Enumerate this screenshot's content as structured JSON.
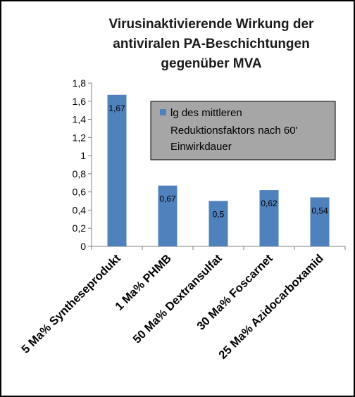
{
  "chart_data": {
    "type": "bar",
    "title_lines": [
      "Virusinaktivierende Wirkung der",
      "antiviralen PA-Beschichtungen",
      "gegenüber MVA"
    ],
    "categories": [
      "5 Ma% Syntheseprodukt",
      "1 Ma% PHMB",
      "50 Ma% Dextransulfat",
      "30 Ma% Foscarnet",
      "25 Ma% Azidocarboxamid"
    ],
    "series": [
      {
        "name_lines": [
          "lg des mittleren",
          "Reduktionsfaktors nach 60'",
          "Einwirkdauer"
        ],
        "values": [
          1.67,
          0.67,
          0.5,
          0.62,
          0.54
        ],
        "value_labels": [
          "1,67",
          "0,67",
          "0,5",
          "0,62",
          "0,54"
        ],
        "color": "#4f81bd"
      }
    ],
    "ylim": [
      0,
      1.8
    ],
    "yticks": [
      0,
      0.2,
      0.4,
      0.6,
      0.8,
      1,
      1.2,
      1.4,
      1.6,
      1.8
    ],
    "ytick_labels": [
      "0",
      "0,2",
      "0,4",
      "0,6",
      "0,8",
      "1",
      "1,2",
      "1,4",
      "1,6",
      "1,8"
    ],
    "grid": false,
    "legend_position": "top-right",
    "legend_background": "#a6a6a6"
  }
}
